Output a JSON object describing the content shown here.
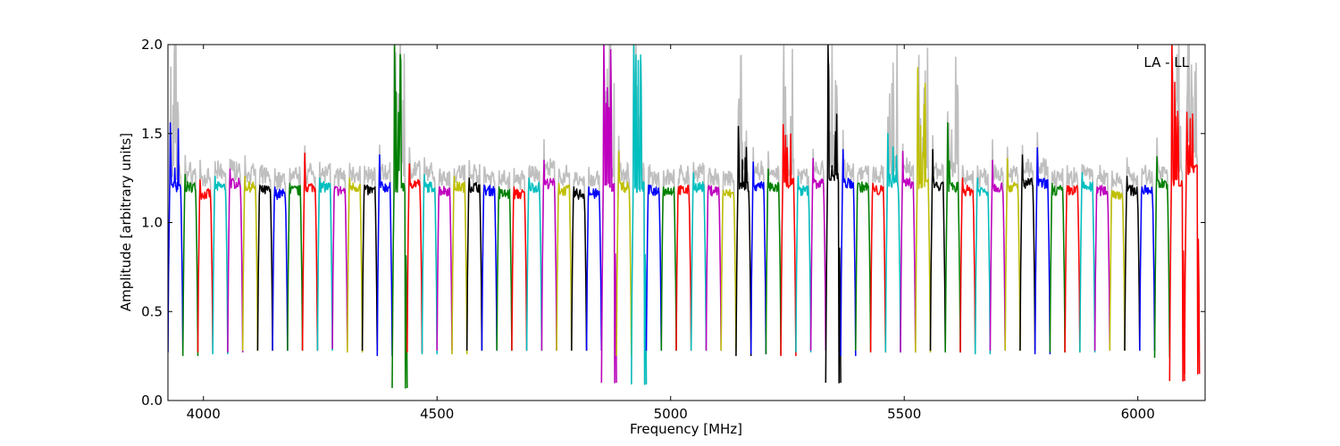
{
  "chart_data": {
    "type": "line",
    "title": "",
    "xlabel": "Frequency [MHz]",
    "ylabel": "Amplitude [arbitrary units]",
    "xlim": [
      3924,
      6144
    ],
    "ylim": [
      0.0,
      2.0
    ],
    "grid": false,
    "annotation": "LA - LL",
    "x_ticks": [
      {
        "value": 4000,
        "label": "4000"
      },
      {
        "value": 4500,
        "label": "4500"
      },
      {
        "value": 5000,
        "label": "5000"
      },
      {
        "value": 5500,
        "label": "5500"
      },
      {
        "value": 6000,
        "label": "6000"
      }
    ],
    "y_ticks": [
      {
        "value": 0.0,
        "label": "0.0"
      },
      {
        "value": 0.5,
        "label": "0.5"
      },
      {
        "value": 1.0,
        "label": "1.0"
      },
      {
        "value": 1.5,
        "label": "1.5"
      },
      {
        "value": 2.0,
        "label": "2.0"
      }
    ],
    "colors": {
      "background_trace": "#bfbfbf",
      "cycle": [
        "#0000ff",
        "#008000",
        "#ff0000",
        "#00bfbf",
        "#bf00bf",
        "#bfbf00",
        "#000000"
      ]
    },
    "channel_width_mhz": 32,
    "channels": [
      {
        "start": 3924,
        "plateau": 1.2,
        "color": "#0000ff",
        "peak": 1.56,
        "min": 0.27
      },
      {
        "start": 3956,
        "plateau": 1.2,
        "color": "#008000",
        "peak": 1.27,
        "min": 0.25
      },
      {
        "start": 3988,
        "plateau": 1.16,
        "color": "#ff0000",
        "peak": 1.24,
        "min": 0.27
      },
      {
        "start": 4020,
        "plateau": 1.2,
        "color": "#00bfbf",
        "peak": 1.26,
        "min": 0.26
      },
      {
        "start": 4052,
        "plateau": 1.22,
        "color": "#bf00bf",
        "peak": 1.3,
        "min": 0.27
      },
      {
        "start": 4084,
        "plateau": 1.2,
        "color": "#bfbf00",
        "peak": 1.26,
        "min": 0.28
      },
      {
        "start": 4116,
        "plateau": 1.18,
        "color": "#000000",
        "peak": 1.21,
        "min": 0.28
      },
      {
        "start": 4148,
        "plateau": 1.16,
        "color": "#0000ff",
        "peak": 1.2,
        "min": 0.28
      },
      {
        "start": 4180,
        "plateau": 1.18,
        "color": "#008000",
        "peak": 1.22,
        "min": 0.28
      },
      {
        "start": 4212,
        "plateau": 1.2,
        "color": "#ff0000",
        "peak": 1.39,
        "min": 0.28
      },
      {
        "start": 4244,
        "plateau": 1.2,
        "color": "#00bfbf",
        "peak": 1.25,
        "min": 0.28
      },
      {
        "start": 4276,
        "plateau": 1.18,
        "color": "#bf00bf",
        "peak": 1.2,
        "min": 0.29
      },
      {
        "start": 4308,
        "plateau": 1.2,
        "color": "#bfbf00",
        "peak": 1.25,
        "min": 0.27
      },
      {
        "start": 4340,
        "plateau": 1.18,
        "color": "#000000",
        "peak": 1.21,
        "min": 0.28
      },
      {
        "start": 4372,
        "plateau": 1.2,
        "color": "#0000ff",
        "peak": 1.38,
        "min": 0.25
      },
      {
        "start": 4404,
        "plateau": 1.2,
        "color": "#008000",
        "peak": 2.0,
        "min": 0.07
      },
      {
        "start": 4436,
        "plateau": 1.22,
        "color": "#ff0000",
        "peak": 1.33,
        "min": 0.27
      },
      {
        "start": 4468,
        "plateau": 1.2,
        "color": "#00bfbf",
        "peak": 1.27,
        "min": 0.26
      },
      {
        "start": 4500,
        "plateau": 1.18,
        "color": "#bf00bf",
        "peak": 1.2,
        "min": 0.28
      },
      {
        "start": 4532,
        "plateau": 1.2,
        "color": "#bfbf00",
        "peak": 1.26,
        "min": 0.26
      },
      {
        "start": 4564,
        "plateau": 1.2,
        "color": "#000000",
        "peak": 1.25,
        "min": 0.28
      },
      {
        "start": 4596,
        "plateau": 1.18,
        "color": "#0000ff",
        "peak": 1.21,
        "min": 0.28
      },
      {
        "start": 4628,
        "plateau": 1.16,
        "color": "#008000",
        "peak": 1.2,
        "min": 0.28
      },
      {
        "start": 4660,
        "plateau": 1.16,
        "color": "#ff0000",
        "peak": 1.2,
        "min": 0.28
      },
      {
        "start": 4692,
        "plateau": 1.2,
        "color": "#00bfbf",
        "peak": 1.25,
        "min": 0.28
      },
      {
        "start": 4724,
        "plateau": 1.22,
        "color": "#bf00bf",
        "peak": 1.35,
        "min": 0.28
      },
      {
        "start": 4756,
        "plateau": 1.18,
        "color": "#bfbf00",
        "peak": 1.22,
        "min": 0.28
      },
      {
        "start": 4788,
        "plateau": 1.16,
        "color": "#000000",
        "peak": 1.2,
        "min": 0.28
      },
      {
        "start": 4820,
        "plateau": 1.16,
        "color": "#0000ff",
        "peak": 1.2,
        "min": 0.28
      },
      {
        "start": 4852,
        "plateau": 1.2,
        "color": "#bf00bf",
        "peak": 2.0,
        "min": 0.1
      },
      {
        "start": 4884,
        "plateau": 1.2,
        "color": "#bfbf00",
        "peak": 1.4,
        "min": 0.25
      },
      {
        "start": 4916,
        "plateau": 1.2,
        "color": "#00bfbf",
        "peak": 2.0,
        "min": 0.09
      },
      {
        "start": 4948,
        "plateau": 1.18,
        "color": "#0000ff",
        "peak": 1.21,
        "min": 0.28
      },
      {
        "start": 4980,
        "plateau": 1.18,
        "color": "#008000",
        "peak": 1.2,
        "min": 0.28
      },
      {
        "start": 5012,
        "plateau": 1.18,
        "color": "#ff0000",
        "peak": 1.2,
        "min": 0.28
      },
      {
        "start": 5044,
        "plateau": 1.2,
        "color": "#00bfbf",
        "peak": 1.28,
        "min": 0.28
      },
      {
        "start": 5076,
        "plateau": 1.18,
        "color": "#bf00bf",
        "peak": 1.2,
        "min": 0.28
      },
      {
        "start": 5108,
        "plateau": 1.16,
        "color": "#bfbf00",
        "peak": 1.18,
        "min": 0.28
      },
      {
        "start": 5140,
        "plateau": 1.2,
        "color": "#000000",
        "peak": 1.54,
        "min": 0.25
      },
      {
        "start": 5172,
        "plateau": 1.2,
        "color": "#0000ff",
        "peak": 1.34,
        "min": 0.26
      },
      {
        "start": 5204,
        "plateau": 1.2,
        "color": "#008000",
        "peak": 1.3,
        "min": 0.26
      },
      {
        "start": 5236,
        "plateau": 1.22,
        "color": "#ff0000",
        "peak": 1.55,
        "min": 0.25
      },
      {
        "start": 5268,
        "plateau": 1.18,
        "color": "#00bfbf",
        "peak": 1.26,
        "min": 0.27
      },
      {
        "start": 5300,
        "plateau": 1.22,
        "color": "#bf00bf",
        "peak": 1.36,
        "min": 0.28
      },
      {
        "start": 5332,
        "plateau": 1.25,
        "color": "#000000",
        "peak": 2.0,
        "min": 0.1
      },
      {
        "start": 5364,
        "plateau": 1.22,
        "color": "#0000ff",
        "peak": 1.41,
        "min": 0.25
      },
      {
        "start": 5396,
        "plateau": 1.2,
        "color": "#008000",
        "peak": 1.22,
        "min": 0.28
      },
      {
        "start": 5428,
        "plateau": 1.18,
        "color": "#ff0000",
        "peak": 1.22,
        "min": 0.27
      },
      {
        "start": 5460,
        "plateau": 1.22,
        "color": "#00bfbf",
        "peak": 1.5,
        "min": 0.27
      },
      {
        "start": 5492,
        "plateau": 1.22,
        "color": "#bf00bf",
        "peak": 1.4,
        "min": 0.27
      },
      {
        "start": 5524,
        "plateau": 1.22,
        "color": "#bfbf00",
        "peak": 1.87,
        "min": 0.27
      },
      {
        "start": 5556,
        "plateau": 1.2,
        "color": "#000000",
        "peak": 1.41,
        "min": 0.28
      },
      {
        "start": 5588,
        "plateau": 1.2,
        "color": "#008000",
        "peak": 1.56,
        "min": 0.27
      },
      {
        "start": 5620,
        "plateau": 1.18,
        "color": "#ff0000",
        "peak": 1.25,
        "min": 0.27
      },
      {
        "start": 5652,
        "plateau": 1.18,
        "color": "#00bfbf",
        "peak": 1.25,
        "min": 0.26
      },
      {
        "start": 5684,
        "plateau": 1.2,
        "color": "#bf00bf",
        "peak": 1.35,
        "min": 0.28
      },
      {
        "start": 5716,
        "plateau": 1.2,
        "color": "#bfbf00",
        "peak": 1.36,
        "min": 0.28
      },
      {
        "start": 5748,
        "plateau": 1.22,
        "color": "#000000",
        "peak": 1.38,
        "min": 0.28
      },
      {
        "start": 5780,
        "plateau": 1.22,
        "color": "#0000ff",
        "peak": 1.42,
        "min": 0.26
      },
      {
        "start": 5812,
        "plateau": 1.18,
        "color": "#008000",
        "peak": 1.22,
        "min": 0.27
      },
      {
        "start": 5844,
        "plateau": 1.18,
        "color": "#ff0000",
        "peak": 1.2,
        "min": 0.27
      },
      {
        "start": 5876,
        "plateau": 1.2,
        "color": "#00bfbf",
        "peak": 1.28,
        "min": 0.27
      },
      {
        "start": 5908,
        "plateau": 1.18,
        "color": "#bf00bf",
        "peak": 1.2,
        "min": 0.28
      },
      {
        "start": 5940,
        "plateau": 1.16,
        "color": "#bfbf00",
        "peak": 1.18,
        "min": 0.28
      },
      {
        "start": 5972,
        "plateau": 1.18,
        "color": "#000000",
        "peak": 1.26,
        "min": 0.28
      },
      {
        "start": 6004,
        "plateau": 1.18,
        "color": "#0000ff",
        "peak": 1.2,
        "min": 0.28
      },
      {
        "start": 6036,
        "plateau": 1.22,
        "color": "#008000",
        "peak": 1.37,
        "min": 0.24
      },
      {
        "start": 6068,
        "plateau": 1.22,
        "color": "#ff0000",
        "peak": 2.0,
        "min": 0.11
      },
      {
        "start": 6100,
        "plateau": 1.3,
        "color": "#ff0000",
        "peak": 1.62,
        "min": 0.15
      }
    ]
  }
}
